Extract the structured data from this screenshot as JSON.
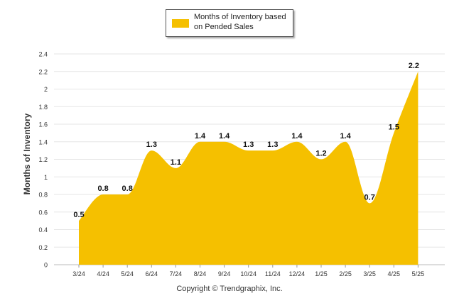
{
  "chart_data": {
    "type": "area",
    "categories": [
      "3/24",
      "4/24",
      "5/24",
      "6/24",
      "7/24",
      "8/24",
      "9/24",
      "10/24",
      "11/24",
      "12/24",
      "1/25",
      "2/25",
      "3/25",
      "4/25",
      "5/25"
    ],
    "series": [
      {
        "name": "Months of Inventory based on Pended Sales",
        "values": [
          0.5,
          0.8,
          0.8,
          1.3,
          1.1,
          1.4,
          1.4,
          1.3,
          1.3,
          1.4,
          1.2,
          1.4,
          0.7,
          1.5,
          2.2
        ]
      }
    ],
    "data_labels": [
      "0.5",
      "0.8",
      "0.8",
      "1.3",
      "1.1",
      "1.4",
      "1.4",
      "1.3",
      "1.3",
      "1.4",
      "1.2",
      "1.4",
      "0.7",
      "1.5",
      "2.2"
    ],
    "ylabel": "Months of Inventory",
    "xlabel": "",
    "ylim": [
      0,
      2.4
    ],
    "y_ticks": [
      "0",
      "0.2",
      "0.4",
      "0.6",
      "0.8",
      "1",
      "1.2",
      "1.4",
      "1.6",
      "1.8",
      "2",
      "2.2",
      "2.4"
    ],
    "grid": "horizontal",
    "legend_position": "top-center",
    "colors": {
      "fill": "#F5C000",
      "grid": "#e6e6e6"
    }
  },
  "legend": {
    "label": "Months of Inventory based on Pended Sales"
  },
  "footer": {
    "text": "Copyright © Trendgraphix, Inc."
  }
}
